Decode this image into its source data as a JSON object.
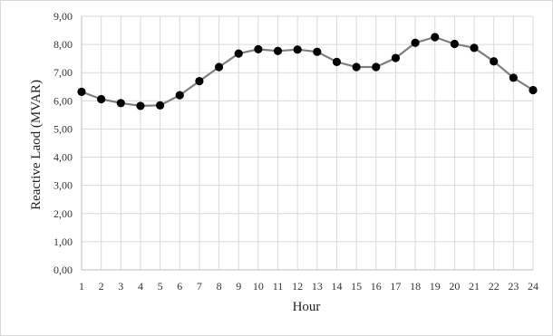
{
  "chart_data": {
    "type": "line",
    "title": "",
    "xlabel": "Hour",
    "ylabel": "Reactive Laod (MVAR)",
    "categories": [
      "1",
      "2",
      "3",
      "4",
      "5",
      "6",
      "7",
      "8",
      "9",
      "10",
      "11",
      "12",
      "13",
      "14",
      "15",
      "16",
      "17",
      "18",
      "19",
      "20",
      "21",
      "22",
      "23",
      "24"
    ],
    "y_tick_labels": [
      "0,00",
      "1,00",
      "2,00",
      "3,00",
      "4,00",
      "5,00",
      "6,00",
      "7,00",
      "8,00",
      "9,00"
    ],
    "ylim": [
      0,
      9
    ],
    "grid": true,
    "legend": "none",
    "series": [
      {
        "values": [
          6.32,
          6.06,
          5.92,
          5.82,
          5.84,
          6.2,
          6.7,
          7.2,
          7.68,
          7.83,
          7.77,
          7.82,
          7.74,
          7.38,
          7.2,
          7.2,
          7.52,
          8.06,
          8.26,
          8.02,
          7.88,
          7.4,
          6.82,
          6.38
        ],
        "line_color": "#7f7f7f",
        "marker_color": "#000000"
      }
    ]
  }
}
